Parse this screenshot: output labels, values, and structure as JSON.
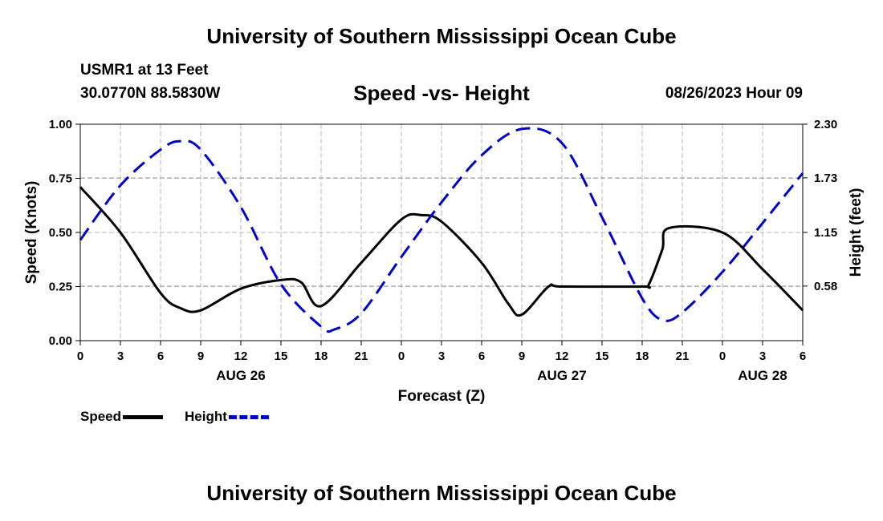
{
  "header": {
    "title": "University of Southern Mississippi Ocean Cube",
    "station": "USMR1 at 13 Feet",
    "coords": "30.0770N  88.5830W",
    "datetime": "08/26/2023 Hour 09",
    "footer": "University of Southern Mississippi Ocean Cube"
  },
  "legend": {
    "speed_label": "Speed",
    "height_label": "Height"
  },
  "chart_data": {
    "type": "line",
    "title": "Speed -vs- Height",
    "xlabel": "Forecast (Z)",
    "ylabel": "Speed (Knots)",
    "y2label": "Height (feet)",
    "grid": true,
    "x_hours": [
      0,
      54
    ],
    "x_ticks": [
      0,
      3,
      6,
      9,
      12,
      15,
      18,
      21,
      24,
      27,
      30,
      33,
      36,
      39,
      42,
      45,
      48,
      51,
      54
    ],
    "x_tick_labels": [
      "0",
      "3",
      "6",
      "9",
      "12",
      "15",
      "18",
      "21",
      "0",
      "3",
      "6",
      "9",
      "12",
      "15",
      "18",
      "21",
      "0",
      "3",
      "6"
    ],
    "date_labels": [
      {
        "hour": 12,
        "label": "AUG 26"
      },
      {
        "hour": 36,
        "label": "AUG 27"
      },
      {
        "hour": 51,
        "label": "AUG 28"
      }
    ],
    "ylim": [
      0,
      1.0
    ],
    "y_ticks": [
      0,
      0.25,
      0.5,
      0.75,
      1.0
    ],
    "y_tick_labels": [
      "0.00",
      "0.25",
      "0.50",
      "0.75",
      "1.00"
    ],
    "y2lim": [
      0,
      2.3
    ],
    "y2_ticks": [
      0.58,
      1.15,
      1.73,
      2.3
    ],
    "y2_tick_labels": [
      "0.58",
      "1.15",
      "1.73",
      "2.30"
    ],
    "series": [
      {
        "name": "Speed",
        "axis": "left",
        "color": "#000000",
        "dash": "solid",
        "x": [
          0,
          3,
          6,
          7.5,
          9,
          12,
          15,
          16.5,
          18,
          21,
          24,
          25.5,
          27,
          30,
          32,
          33,
          35,
          36,
          42,
          42.5,
          43.5,
          44,
          48,
          51,
          54
        ],
        "values": [
          0.71,
          0.5,
          0.22,
          0.15,
          0.14,
          0.24,
          0.28,
          0.27,
          0.16,
          0.36,
          0.56,
          0.58,
          0.55,
          0.36,
          0.17,
          0.12,
          0.25,
          0.25,
          0.25,
          0.26,
          0.42,
          0.52,
          0.5,
          0.33,
          0.14
        ]
      },
      {
        "name": "Height",
        "axis": "right",
        "color": "#0000c8",
        "dash": "dashed",
        "x": [
          0,
          3,
          6,
          7.5,
          9,
          12,
          15,
          18,
          19,
          21,
          24,
          27,
          30,
          33,
          36,
          39,
          42,
          43.5,
          45,
          48,
          51,
          54
        ],
        "values": [
          1.07,
          1.65,
          2.03,
          2.12,
          2.03,
          1.42,
          0.6,
          0.15,
          0.12,
          0.29,
          0.89,
          1.47,
          1.97,
          2.25,
          2.1,
          1.31,
          0.45,
          0.22,
          0.3,
          0.73,
          1.25,
          1.78
        ]
      }
    ]
  }
}
